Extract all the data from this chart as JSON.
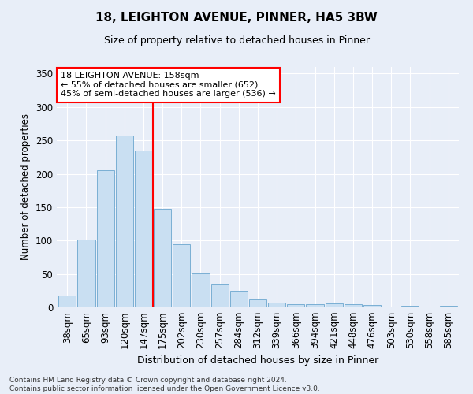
{
  "title1": "18, LEIGHTON AVENUE, PINNER, HA5 3BW",
  "title2": "Size of property relative to detached houses in Pinner",
  "xlabel": "Distribution of detached houses by size in Pinner",
  "ylabel": "Number of detached properties",
  "categories": [
    "38sqm",
    "65sqm",
    "93sqm",
    "120sqm",
    "147sqm",
    "175sqm",
    "202sqm",
    "230sqm",
    "257sqm",
    "284sqm",
    "312sqm",
    "339sqm",
    "366sqm",
    "394sqm",
    "421sqm",
    "448sqm",
    "476sqm",
    "503sqm",
    "530sqm",
    "558sqm",
    "585sqm"
  ],
  "values": [
    18,
    101,
    205,
    257,
    235,
    148,
    94,
    51,
    34,
    25,
    12,
    7,
    5,
    5,
    6,
    5,
    3,
    1,
    2,
    1,
    2
  ],
  "bar_color": "#c9dff2",
  "bar_edge_color": "#7aafd4",
  "redline_x": 4.5,
  "annotation_text_line1": "18 LEIGHTON AVENUE: 158sqm",
  "annotation_text_line2": "← 55% of detached houses are smaller (652)",
  "annotation_text_line3": "45% of semi-detached houses are larger (536) →",
  "annotation_box_color": "white",
  "annotation_box_edge": "red",
  "footer": "Contains HM Land Registry data © Crown copyright and database right 2024.\nContains public sector information licensed under the Open Government Licence v3.0.",
  "ylim": [
    0,
    360
  ],
  "background_color": "#e8eef8",
  "grid_color": "white",
  "yticks": [
    0,
    50,
    100,
    150,
    200,
    250,
    300,
    350
  ]
}
